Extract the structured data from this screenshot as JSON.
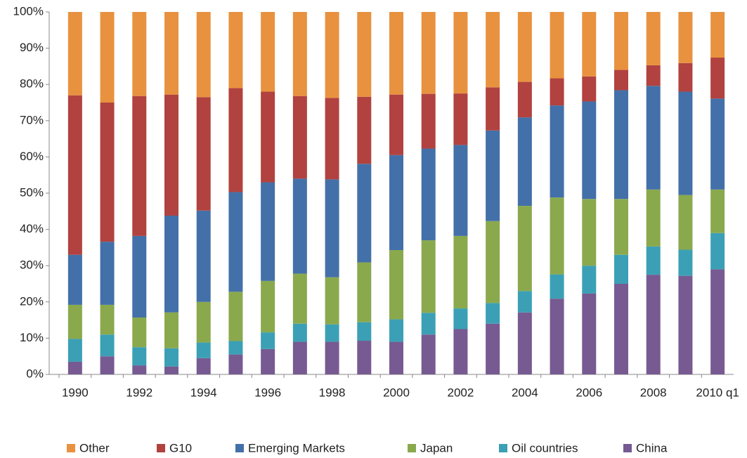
{
  "chart_data": {
    "type": "stacked_bar",
    "categories": [
      "1990",
      null,
      "1992",
      null,
      "1994",
      null,
      "1996",
      null,
      "1998",
      null,
      "2000",
      null,
      "2002",
      null,
      "2004",
      null,
      "2006",
      null,
      "2008",
      null,
      "2010 q1"
    ],
    "series": [
      {
        "name": "Other",
        "color": "#e8923f",
        "values": [
          23,
          25,
          23.2,
          22.8,
          23.5,
          21,
          22,
          23.2,
          23.7,
          23.4,
          22.8,
          22.6,
          22.5,
          20.8,
          19.3,
          18.3,
          17.8,
          16,
          14.7,
          14.1,
          12.6
        ]
      },
      {
        "name": "G10",
        "color": "#b1423f",
        "values": [
          44,
          38.4,
          38.6,
          33.4,
          31.3,
          28.7,
          25,
          22.8,
          22.5,
          18.5,
          16.7,
          15.1,
          14.2,
          11.9,
          9.8,
          7.5,
          6.9,
          5.6,
          5.7,
          7.9,
          11.3
        ]
      },
      {
        "name": "Emerging Markets",
        "color": "#4370a8",
        "values": [
          13.8,
          17.4,
          22.5,
          26.7,
          25.2,
          27.5,
          27.2,
          26.2,
          27,
          27.2,
          26.2,
          25.3,
          25.1,
          25,
          24.4,
          25.4,
          26.9,
          30,
          28.6,
          28.5,
          25.1
        ]
      },
      {
        "name": "Japan",
        "color": "#8aa94d",
        "values": [
          9.4,
          8.2,
          8.2,
          9.9,
          11.2,
          13.6,
          14.2,
          13.8,
          13,
          16.5,
          19.1,
          20,
          20,
          22.6,
          23.5,
          21.2,
          18.4,
          15.4,
          15.7,
          15.1,
          12
        ]
      },
      {
        "name": "Oil countries",
        "color": "#3ba0b5",
        "values": [
          6.3,
          6,
          5,
          5,
          4.3,
          3.7,
          4.6,
          5,
          4.8,
          5.1,
          6.2,
          6,
          5.7,
          5.7,
          5.9,
          6.7,
          7.7,
          8,
          7.8,
          7.2,
          10
        ]
      },
      {
        "name": "China",
        "color": "#775a92",
        "values": [
          3.5,
          5,
          2.5,
          2.2,
          4.5,
          5.5,
          7,
          9,
          9,
          9.3,
          9,
          11,
          12.5,
          14,
          17.1,
          20.9,
          22.3,
          25,
          27.5,
          27.2,
          29
        ]
      }
    ],
    "ylim": [
      0,
      100
    ],
    "yticks": [
      {
        "value": 0,
        "label": "0%"
      },
      {
        "value": 10,
        "label": "10%"
      },
      {
        "value": 20,
        "label": "20%"
      },
      {
        "value": 30,
        "label": "30%"
      },
      {
        "value": 40,
        "label": "40%"
      },
      {
        "value": 50,
        "label": "50%"
      },
      {
        "value": 60,
        "label": "60%"
      },
      {
        "value": 70,
        "label": "70%"
      },
      {
        "value": 80,
        "label": "80%"
      },
      {
        "value": 90,
        "label": "90%"
      },
      {
        "value": 100,
        "label": "100%"
      }
    ],
    "legend": "bottom"
  }
}
